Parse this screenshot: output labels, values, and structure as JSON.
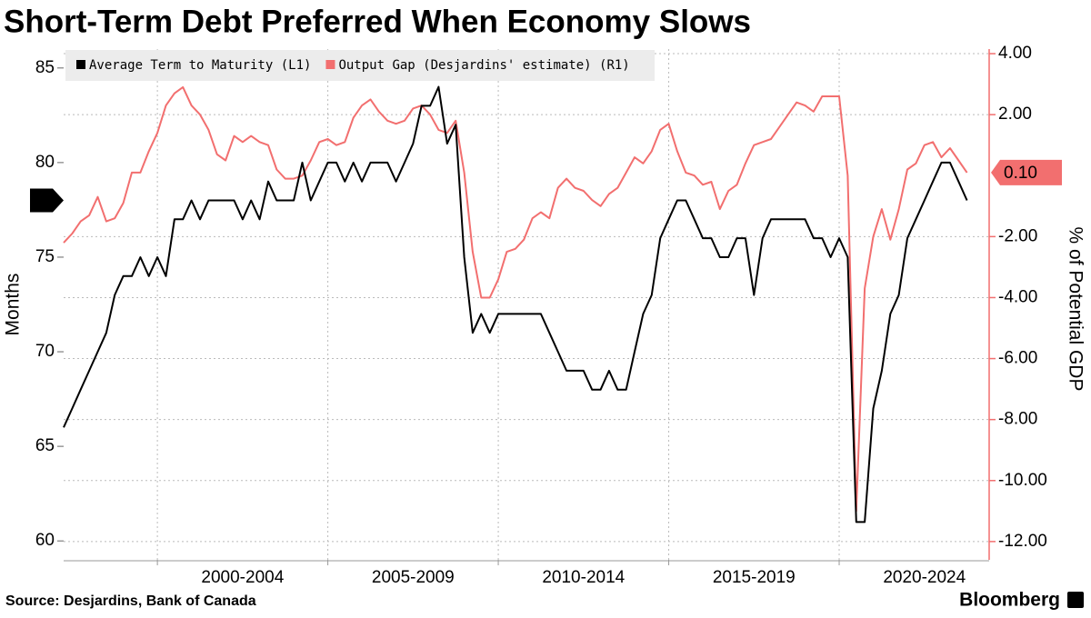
{
  "chart_data": {
    "type": "line",
    "title": "Short-Term Debt Preferred When Economy Slows",
    "source": "Source: Desjardins, Bank of Canada",
    "brand": "Bloomberg",
    "ylabel": "Months",
    "y2label": "% of Potential GDP",
    "x": [
      1997.25,
      1997.5,
      1997.75,
      1998,
      1998.25,
      1998.5,
      1998.75,
      1999,
      1999.25,
      1999.5,
      1999.75,
      2000,
      2000.25,
      2000.5,
      2000.75,
      2001,
      2001.25,
      2001.5,
      2001.75,
      2002,
      2002.25,
      2002.5,
      2002.75,
      2003,
      2003.25,
      2003.5,
      2003.75,
      2004,
      2004.25,
      2004.5,
      2004.75,
      2005,
      2005.25,
      2005.5,
      2005.75,
      2006,
      2006.25,
      2006.5,
      2006.75,
      2007,
      2007.25,
      2007.5,
      2007.75,
      2008,
      2008.25,
      2008.5,
      2008.75,
      2009,
      2009.25,
      2009.5,
      2009.75,
      2010,
      2010.25,
      2010.5,
      2010.75,
      2011,
      2011.25,
      2011.5,
      2011.75,
      2012,
      2012.25,
      2012.5,
      2012.75,
      2013,
      2013.25,
      2013.5,
      2013.75,
      2014,
      2014.25,
      2014.5,
      2014.75,
      2015,
      2015.25,
      2015.5,
      2015.75,
      2016,
      2016.25,
      2016.5,
      2016.75,
      2017,
      2017.25,
      2017.5,
      2017.75,
      2018,
      2018.25,
      2018.5,
      2018.75,
      2019,
      2019.25,
      2019.5,
      2019.75,
      2020,
      2020.25,
      2020.5,
      2020.75,
      2021,
      2021.25,
      2021.5,
      2021.75,
      2022,
      2022.25,
      2022.5,
      2022.75,
      2023,
      2023.25,
      2023.5,
      2023.75
    ],
    "xlim": [
      1997.25,
      2024.4
    ],
    "xticks": [
      {
        "value": 2002.5,
        "label": "2000-2004"
      },
      {
        "value": 2007.5,
        "label": "2005-2009"
      },
      {
        "value": 2012.5,
        "label": "2010-2014"
      },
      {
        "value": 2017.5,
        "label": "2015-2019"
      },
      {
        "value": 2022.5,
        "label": "2020-2024"
      }
    ],
    "xgrid": [
      2000,
      2005,
      2010,
      2015,
      2020
    ],
    "ylim": [
      59,
      86
    ],
    "yticks": [
      60,
      65,
      70,
      75,
      80,
      85
    ],
    "y2lim": [
      -12.6,
      4.15
    ],
    "y2ticks": [
      {
        "value": 4,
        "label": "4.00"
      },
      {
        "value": 2,
        "label": "2.00"
      },
      {
        "value": -2,
        "label": "-2.00"
      },
      {
        "value": -4,
        "label": "-4.00"
      },
      {
        "value": -6,
        "label": "-6.00"
      },
      {
        "value": -8,
        "label": "-8.00"
      },
      {
        "value": -10,
        "label": "-10.00"
      },
      {
        "value": -12,
        "label": "-12.00"
      }
    ],
    "grid": true,
    "legend": "top-left",
    "series": [
      {
        "name": "Average Term to Maturity (L1)",
        "color": "#000000",
        "axis": "y",
        "values": [
          66,
          67,
          68,
          69,
          70,
          71,
          73,
          74,
          74,
          75,
          74,
          75,
          74,
          77,
          77,
          78,
          77,
          78,
          78,
          78,
          78,
          77,
          78,
          77,
          79,
          78,
          78,
          78,
          80,
          78,
          79,
          80,
          80,
          79,
          80,
          79,
          80,
          80,
          80,
          79,
          80,
          81,
          83,
          83,
          84,
          81,
          82,
          75,
          71,
          72,
          71,
          72,
          72,
          72,
          72,
          72,
          72,
          71,
          70,
          69,
          69,
          69,
          68,
          68,
          69,
          68,
          68,
          70,
          72,
          73,
          76,
          77,
          78,
          78,
          77,
          76,
          76,
          75,
          75,
          76,
          76,
          73,
          76,
          77,
          77,
          77,
          77,
          77,
          76,
          76,
          75,
          76,
          75,
          61,
          61,
          67,
          69,
          72,
          73,
          76,
          77,
          78,
          79,
          80,
          80,
          79,
          78
        ]
      },
      {
        "name": "Output Gap (Desjardins' estimate) (R1)",
        "color": "#f26f6f",
        "axis": "y2",
        "values": [
          -2.2,
          -1.9,
          -1.5,
          -1.3,
          -0.7,
          -1.5,
          -1.4,
          -0.9,
          0.1,
          0.1,
          0.8,
          1.4,
          2.3,
          2.7,
          2.9,
          2.3,
          2.0,
          1.5,
          0.7,
          0.5,
          1.3,
          1.1,
          1.3,
          1.1,
          1.0,
          0.2,
          -0.1,
          -0.1,
          0.0,
          0.5,
          1.1,
          1.2,
          1.0,
          1.1,
          1.9,
          2.3,
          2.5,
          2.1,
          1.8,
          1.7,
          1.8,
          2.2,
          2.3,
          2.0,
          1.5,
          1.4,
          1.8,
          0.1,
          -2.5,
          -4.0,
          -4.0,
          -3.4,
          -2.5,
          -2.4,
          -2.1,
          -1.4,
          -1.2,
          -1.4,
          -0.4,
          -0.1,
          -0.4,
          -0.5,
          -0.8,
          -1.0,
          -0.6,
          -0.4,
          0.1,
          0.6,
          0.4,
          0.8,
          1.5,
          1.7,
          0.8,
          0.1,
          0.0,
          -0.3,
          -0.2,
          -1.1,
          -0.5,
          -0.3,
          0.4,
          1.0,
          1.1,
          1.2,
          1.6,
          2.0,
          2.4,
          2.3,
          2.1,
          2.6,
          2.6,
          2.6,
          0.0,
          -11.0,
          -3.7,
          -2.0,
          -1.1,
          -2.1,
          -1.1,
          0.2,
          0.4,
          1.0,
          1.1,
          0.6,
          0.9,
          0.5,
          0.1
        ],
        "value_labels": [
          null,
          null,
          null,
          null,
          null,
          null,
          null,
          null,
          null,
          null,
          null,
          null,
          null,
          null,
          null,
          null,
          null,
          null,
          null,
          null,
          null,
          null,
          null,
          null,
          null,
          null,
          null,
          null,
          null,
          null,
          null,
          null,
          null,
          null,
          null,
          null,
          null,
          null,
          null,
          null,
          null,
          null,
          null,
          null,
          null,
          null,
          null,
          null,
          null,
          null,
          null,
          null,
          null,
          null,
          null,
          null,
          null,
          null,
          null,
          null,
          null,
          null,
          null,
          null,
          null,
          null,
          null,
          null,
          null,
          null,
          null,
          null,
          null,
          null,
          null,
          null,
          null,
          null,
          null,
          null,
          null,
          null,
          null,
          null,
          null,
          null,
          null,
          null,
          null,
          null,
          null,
          null,
          null,
          null,
          null,
          null,
          null,
          null,
          null,
          null,
          null,
          null,
          null,
          null,
          null,
          null,
          "0.10"
        ]
      }
    ]
  }
}
